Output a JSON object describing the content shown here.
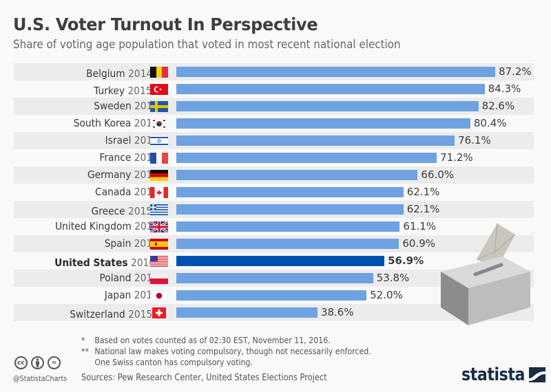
{
  "header": {
    "title": "U.S. Voter Turnout In Perspective",
    "subtitle": "Share of voting age population that voted in most recent national election"
  },
  "colors": {
    "bar": "#6fa2e0",
    "highlight_bar": "#0052b1",
    "row_shade": "#ececec",
    "background": "#f9f9f9"
  },
  "chart_data": {
    "type": "bar",
    "orientation": "horizontal",
    "title": "U.S. Voter Turnout In Perspective",
    "subtitle": "Share of voting age population that voted in most recent national election",
    "xlabel": "",
    "ylabel": "",
    "unit": "%",
    "xlim": [
      0,
      100
    ],
    "grid": false,
    "legend": "none",
    "highlight": "United States",
    "categories": [
      "Belgium",
      "Turkey",
      "Sweden",
      "South Korea",
      "Israel",
      "France",
      "Germany",
      "Canada",
      "Greece",
      "United Kingdom",
      "Spain",
      "United States",
      "Poland",
      "Japan",
      "Switzerland"
    ],
    "values": [
      87.2,
      84.3,
      82.6,
      80.4,
      76.1,
      71.2,
      66.0,
      62.1,
      62.1,
      61.1,
      60.9,
      56.9,
      53.8,
      52.0,
      38.6
    ],
    "rows": [
      {
        "country": "Belgium",
        "year": "2014",
        "note": "**",
        "flag": "belgium-flag",
        "value": 87.2,
        "label": "87.2%"
      },
      {
        "country": "Turkey",
        "year": "2015",
        "note": "**",
        "flag": "turkey-flag",
        "value": 84.3,
        "label": "84.3%"
      },
      {
        "country": "Sweden",
        "year": "2014",
        "note": "",
        "flag": "sweden-flag",
        "value": 82.6,
        "label": "82.6%"
      },
      {
        "country": "South Korea",
        "year": "2012",
        "note": "",
        "flag": "south-korea-flag",
        "value": 80.4,
        "label": "80.4%"
      },
      {
        "country": "Israel",
        "year": "2015",
        "note": "",
        "flag": "israel-flag",
        "value": 76.1,
        "label": "76.1%"
      },
      {
        "country": "France",
        "year": "2012",
        "note": "",
        "flag": "france-flag",
        "value": 71.2,
        "label": "71.2%"
      },
      {
        "country": "Germany",
        "year": "2013",
        "note": "",
        "flag": "germany-flag",
        "value": 66.0,
        "label": "66.0%"
      },
      {
        "country": "Canada",
        "year": "2015",
        "note": "",
        "flag": "canada-flag",
        "value": 62.1,
        "label": "62.1%"
      },
      {
        "country": "Greece",
        "year": "2015",
        "note": "**",
        "flag": "greece-flag",
        "value": 62.1,
        "label": "62.1%"
      },
      {
        "country": "United Kingdom",
        "year": "2015",
        "note": "",
        "flag": "uk-flag",
        "value": 61.1,
        "label": "61.1%"
      },
      {
        "country": "Spain",
        "year": "2016",
        "note": "",
        "flag": "spain-flag",
        "value": 60.9,
        "label": "60.9%"
      },
      {
        "country": "United States",
        "year": "2016",
        "note": "*",
        "flag": "usa-flag",
        "value": 56.9,
        "label": "56.9%",
        "highlight": true
      },
      {
        "country": "Poland",
        "year": "2015",
        "note": "",
        "flag": "poland-flag",
        "value": 53.8,
        "label": "53.8%"
      },
      {
        "country": "Japan",
        "year": "2014",
        "note": "",
        "flag": "japan-flag",
        "value": 52.0,
        "label": "52.0%"
      },
      {
        "country": "Switzerland",
        "year": "2015",
        "note": "**",
        "flag": "switzerland-flag",
        "value": 38.6,
        "label": "38.6%"
      }
    ]
  },
  "footer": {
    "footnotes": [
      {
        "mark": "*",
        "text": "Based on votes counted as of 02:30 EST, November 11, 2016."
      },
      {
        "mark": "**",
        "text": "National law makes voting compulsory, though not necessarily enforced."
      },
      {
        "mark": "",
        "text": "One Swiss canton has compulsory voting."
      }
    ],
    "sources": "Sources: Pew Research Center, United States Elections Project",
    "handle": "@StatistaCharts",
    "license_icons": [
      "cc-icon",
      "attribution-icon",
      "no-derivatives-icon"
    ],
    "cc_label": "cc",
    "nd_label": "=",
    "logo_text": "statista"
  },
  "illustration": "ballot-box-icon"
}
